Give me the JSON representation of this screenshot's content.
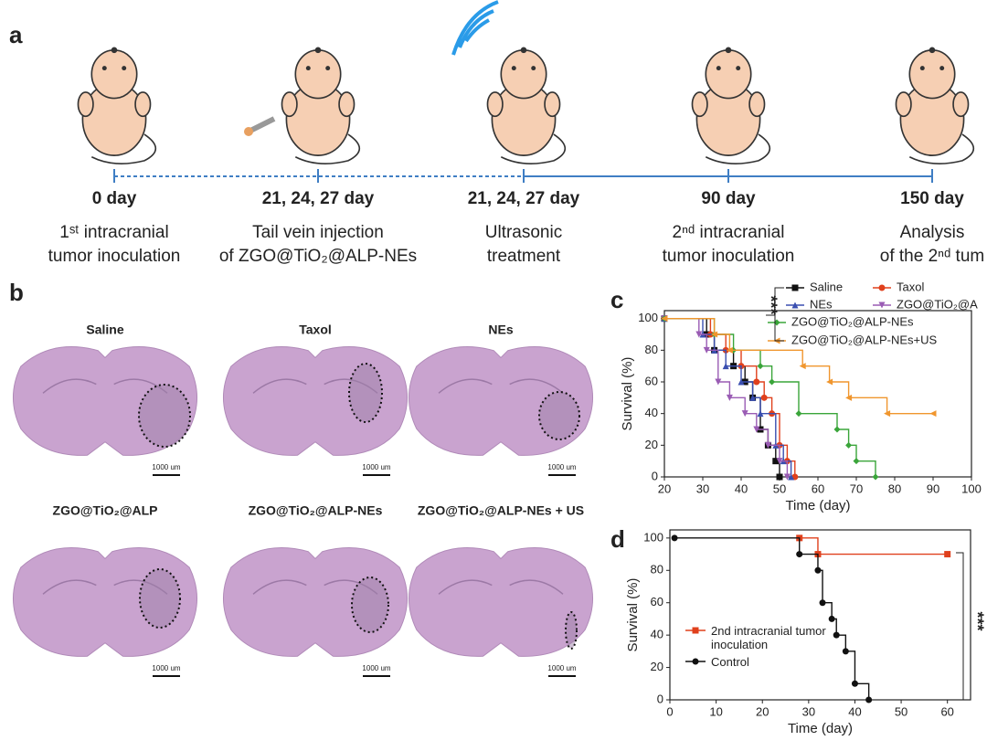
{
  "panel_labels": [
    "a",
    "b",
    "c",
    "d"
  ],
  "timeline": [
    {
      "day": "0 day",
      "desc": [
        "1ˢᵗ intracranial",
        "tumor inoculation"
      ]
    },
    {
      "day": "21, 24, 27 day",
      "desc": [
        "Tail vein injection",
        "of ZGO@TiO₂@ALP-NEs"
      ]
    },
    {
      "day": "21, 24, 27 day",
      "desc": [
        "Ultrasonic",
        "treatment"
      ]
    },
    {
      "day": "90 day",
      "desc": [
        "2ⁿᵈ intracranial",
        "tumor inoculation"
      ]
    },
    {
      "day": "150 day",
      "desc": [
        "Analysis",
        "of the 2ⁿᵈ tum"
      ]
    }
  ],
  "histology": [
    {
      "title": "Saline",
      "scale_bar": "1000 um"
    },
    {
      "title": "Taxol",
      "scale_bar": "1000 um"
    },
    {
      "title": "NEs",
      "scale_bar": "1000 um"
    },
    {
      "title": "ZGO@TiO₂@ALP",
      "scale_bar": "1000 um"
    },
    {
      "title": "ZGO@TiO₂@ALP-NEs",
      "scale_bar": "1000 um"
    },
    {
      "title": "ZGO@TiO₂@ALP-NEs + US",
      "scale_bar": "1000 um"
    }
  ],
  "chart_data": [
    {
      "type": "step",
      "xlabel": "Time (day)",
      "ylabel": "Survival (%)",
      "annotation": "***",
      "xlim": [
        20,
        100
      ],
      "xticks": [
        20,
        30,
        40,
        50,
        60,
        70,
        80,
        90,
        100
      ],
      "ylim": [
        0,
        105
      ],
      "yticks": [
        0,
        20,
        40,
        60,
        80,
        100
      ],
      "series": [
        {
          "name": "Saline",
          "color": "#111111",
          "marker": "square",
          "x": [
            20,
            31,
            33,
            38,
            41,
            43,
            45,
            47,
            49,
            50
          ],
          "values": [
            100,
            90,
            80,
            70,
            60,
            50,
            30,
            20,
            10,
            0
          ]
        },
        {
          "name": "Taxol",
          "color": "#e0401c",
          "marker": "circle",
          "x": [
            20,
            32,
            36,
            40,
            44,
            46,
            48,
            50,
            52,
            54
          ],
          "values": [
            100,
            90,
            80,
            70,
            60,
            50,
            40,
            20,
            10,
            0
          ]
        },
        {
          "name": "NEs",
          "color": "#3a4fb0",
          "marker": "triangle",
          "x": [
            20,
            30,
            33,
            36,
            40,
            43,
            45,
            49,
            51,
            53
          ],
          "values": [
            100,
            90,
            80,
            70,
            60,
            50,
            40,
            20,
            10,
            0
          ]
        },
        {
          "name": "ZGO@TiO₂@A",
          "color": "#9a5cb4",
          "marker": "triangle-down",
          "x": [
            20,
            29,
            31,
            34,
            37,
            41,
            44,
            47,
            50,
            52
          ],
          "values": [
            100,
            90,
            80,
            60,
            50,
            40,
            30,
            20,
            10,
            0
          ]
        },
        {
          "name": "ZGO@TiO₂@ALP-NEs",
          "color": "#3aa53a",
          "marker": "diamond",
          "x": [
            20,
            33,
            38,
            45,
            48,
            55,
            65,
            68,
            70,
            75
          ],
          "values": [
            100,
            90,
            80,
            70,
            60,
            40,
            30,
            20,
            10,
            0
          ]
        },
        {
          "name": "ZGO@TiO₂@ALP-NEs+US",
          "color": "#f0962e",
          "marker": "left-triangle",
          "x": [
            20,
            33,
            37,
            56,
            63,
            68,
            78,
            90
          ],
          "values": [
            100,
            90,
            80,
            70,
            60,
            50,
            40,
            40
          ]
        }
      ]
    },
    {
      "type": "step",
      "xlabel": "Time (day)",
      "ylabel": "Survival (%)",
      "annotation": "***",
      "xlim": [
        0,
        65
      ],
      "xticks": [
        0,
        10,
        20,
        30,
        40,
        50,
        60
      ],
      "ylim": [
        0,
        105
      ],
      "yticks": [
        0,
        20,
        40,
        60,
        80,
        100
      ],
      "series": [
        {
          "name": "2nd intracranial tumor inoculation",
          "color": "#e0401c",
          "marker": "square",
          "x": [
            28,
            32,
            60
          ],
          "values": [
            100,
            90,
            90
          ]
        },
        {
          "name": "Control",
          "color": "#111111",
          "marker": "circle",
          "x": [
            1,
            28,
            32,
            33,
            35,
            36,
            38,
            40,
            43
          ],
          "values": [
            100,
            90,
            80,
            60,
            50,
            40,
            30,
            10,
            0
          ]
        }
      ]
    }
  ]
}
